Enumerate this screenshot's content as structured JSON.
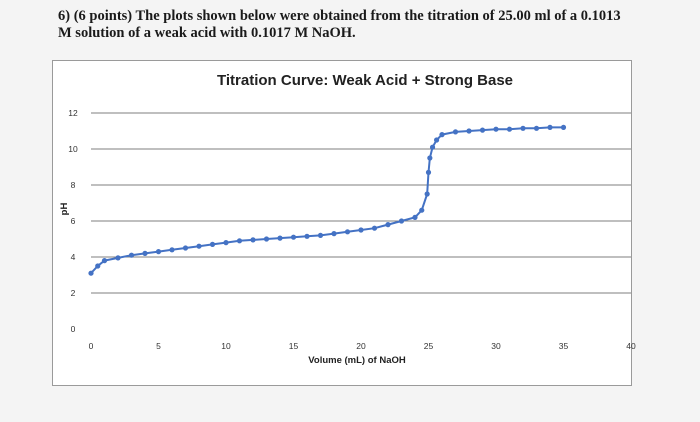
{
  "question": {
    "line1": "6) (6 points) The plots shown below were obtained from the titration of 25.00 ml of a 0.1013",
    "line2": "M solution of a weak acid with 0.1017 M NaOH."
  },
  "colors": {
    "series": "#4472c4",
    "grid": "#7f7f7f"
  },
  "chart_data": {
    "type": "scatter",
    "title": "Titration Curve: Weak Acid   + Strong Base",
    "xlabel": "Volume (mL) of NaOH",
    "ylabel": "pH",
    "xlim": [
      0,
      40
    ],
    "ylim": [
      0,
      12
    ],
    "x_ticks": [
      0,
      5,
      10,
      15,
      20,
      25,
      30,
      35,
      40
    ],
    "y_ticks": [
      0,
      2,
      4,
      6,
      8,
      10,
      12
    ],
    "grid": "horizontal",
    "legend": "none",
    "series": [
      {
        "x": [
          0,
          0.5,
          1,
          2,
          3,
          4,
          5,
          6,
          7,
          8,
          9,
          10,
          11,
          12,
          13,
          14,
          15,
          16,
          17,
          18,
          19,
          20,
          21,
          22,
          23,
          24,
          24.5,
          24.9,
          25,
          25.1,
          25.3,
          25.6,
          26,
          27,
          28,
          29,
          30,
          31,
          32,
          33,
          34,
          35
        ],
        "y": [
          3.1,
          3.5,
          3.8,
          3.95,
          4.1,
          4.2,
          4.3,
          4.4,
          4.5,
          4.6,
          4.7,
          4.8,
          4.9,
          4.95,
          5.0,
          5.05,
          5.1,
          5.15,
          5.2,
          5.3,
          5.4,
          5.5,
          5.6,
          5.8,
          6.0,
          6.2,
          6.6,
          7.5,
          8.7,
          9.5,
          10.1,
          10.5,
          10.8,
          10.95,
          11.0,
          11.05,
          11.1,
          11.1,
          11.15,
          11.15,
          11.2,
          11.2
        ]
      }
    ]
  }
}
